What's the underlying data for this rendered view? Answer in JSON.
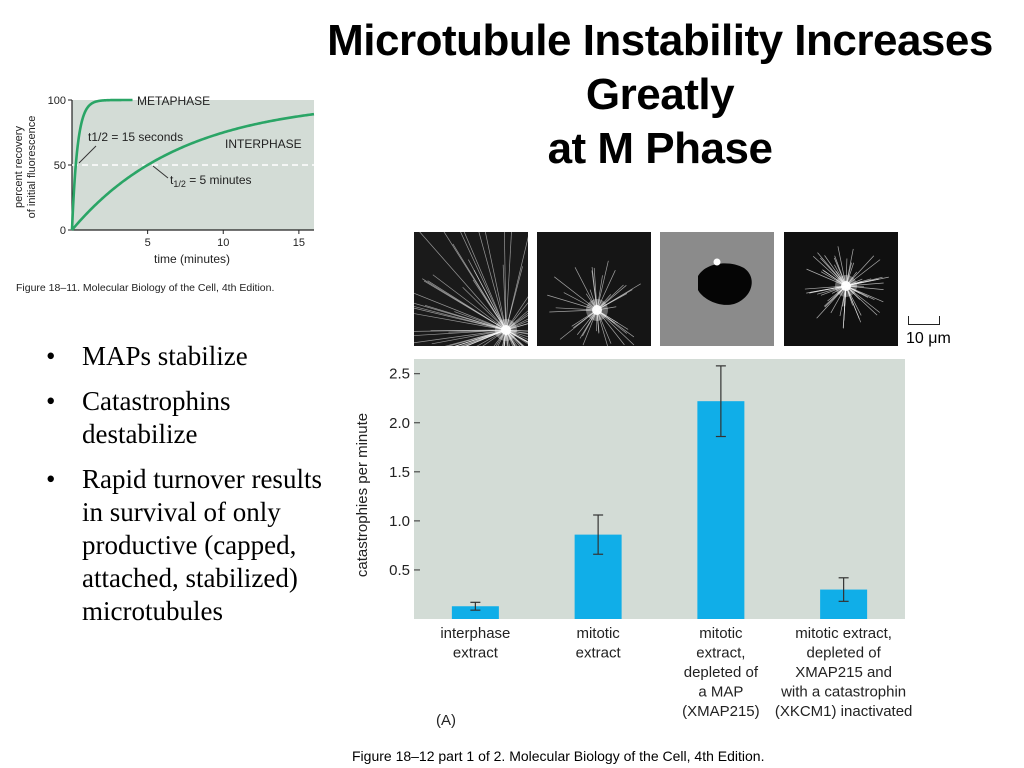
{
  "slide": {
    "title_line1": "Microtubule Instability Increases Greatly",
    "title_line2": "at M Phase",
    "bullets": [
      "MAPs stabilize",
      "Catastrophins destabilize",
      "Rapid turnover results in survival of only productive (capped, attached, stabilized) microtubules"
    ]
  },
  "figure1": {
    "caption": "Figure 18–11. Molecular Biology of the Cell, 4th Edition.",
    "labels": {
      "metaphase": "METAPHASE",
      "interphase": "INTERPHASE",
      "t_half_metaphase": "t1/2 = 15 seconds",
      "t_half_interphase_prefix": "t",
      "t_half_interphase_sub": "1/2",
      "t_half_interphase_suffix": " = 5 minutes"
    }
  },
  "figure2": {
    "caption": "Figure 18–12 part 1 of 2. Molecular Biology of the Cell, 4th Edition.",
    "panel_label": "(A)",
    "scale_label": "10 μm",
    "category_lines": [
      [
        "interphase",
        "extract"
      ],
      [
        "mitotic",
        "extract"
      ],
      [
        "mitotic",
        "extract,",
        "depleted of",
        "a MAP",
        "(XMAP215)"
      ],
      [
        "mitotic extract,",
        "depleted of",
        "XMAP215 and",
        "with a catastrophin",
        "(XKCM1) inactivated"
      ]
    ]
  },
  "chart_data": [
    {
      "type": "line",
      "xlabel": "time (minutes)",
      "ylabel_lines": [
        "percent recovery",
        "of initial fluorescence"
      ],
      "xlim": [
        0,
        16
      ],
      "ylim": [
        0,
        100
      ],
      "x_ticks": [
        5,
        10,
        15
      ],
      "y_ticks": [
        0,
        50,
        100
      ],
      "reference_line_y": 50,
      "series": [
        {
          "name": "METAPHASE",
          "t_half_minutes": 0.25,
          "color": "#2aa566"
        },
        {
          "name": "INTERPHASE",
          "t_half_minutes": 5,
          "color": "#2aa566"
        }
      ]
    },
    {
      "type": "bar",
      "ylabel": "catastrophies per minute",
      "ylim": [
        0,
        2.65
      ],
      "y_ticks": [
        0.5,
        1.0,
        1.5,
        2.0,
        2.5
      ],
      "y_tick_labels": [
        "0.5",
        "1.0",
        "1.5",
        "2.0",
        "2.5"
      ],
      "bar_color": "#10aee8",
      "plot_background": "#d3dcd6",
      "values": [
        0.13,
        0.86,
        2.22,
        0.3
      ],
      "errors": [
        0.04,
        0.2,
        0.36,
        0.12
      ]
    }
  ]
}
